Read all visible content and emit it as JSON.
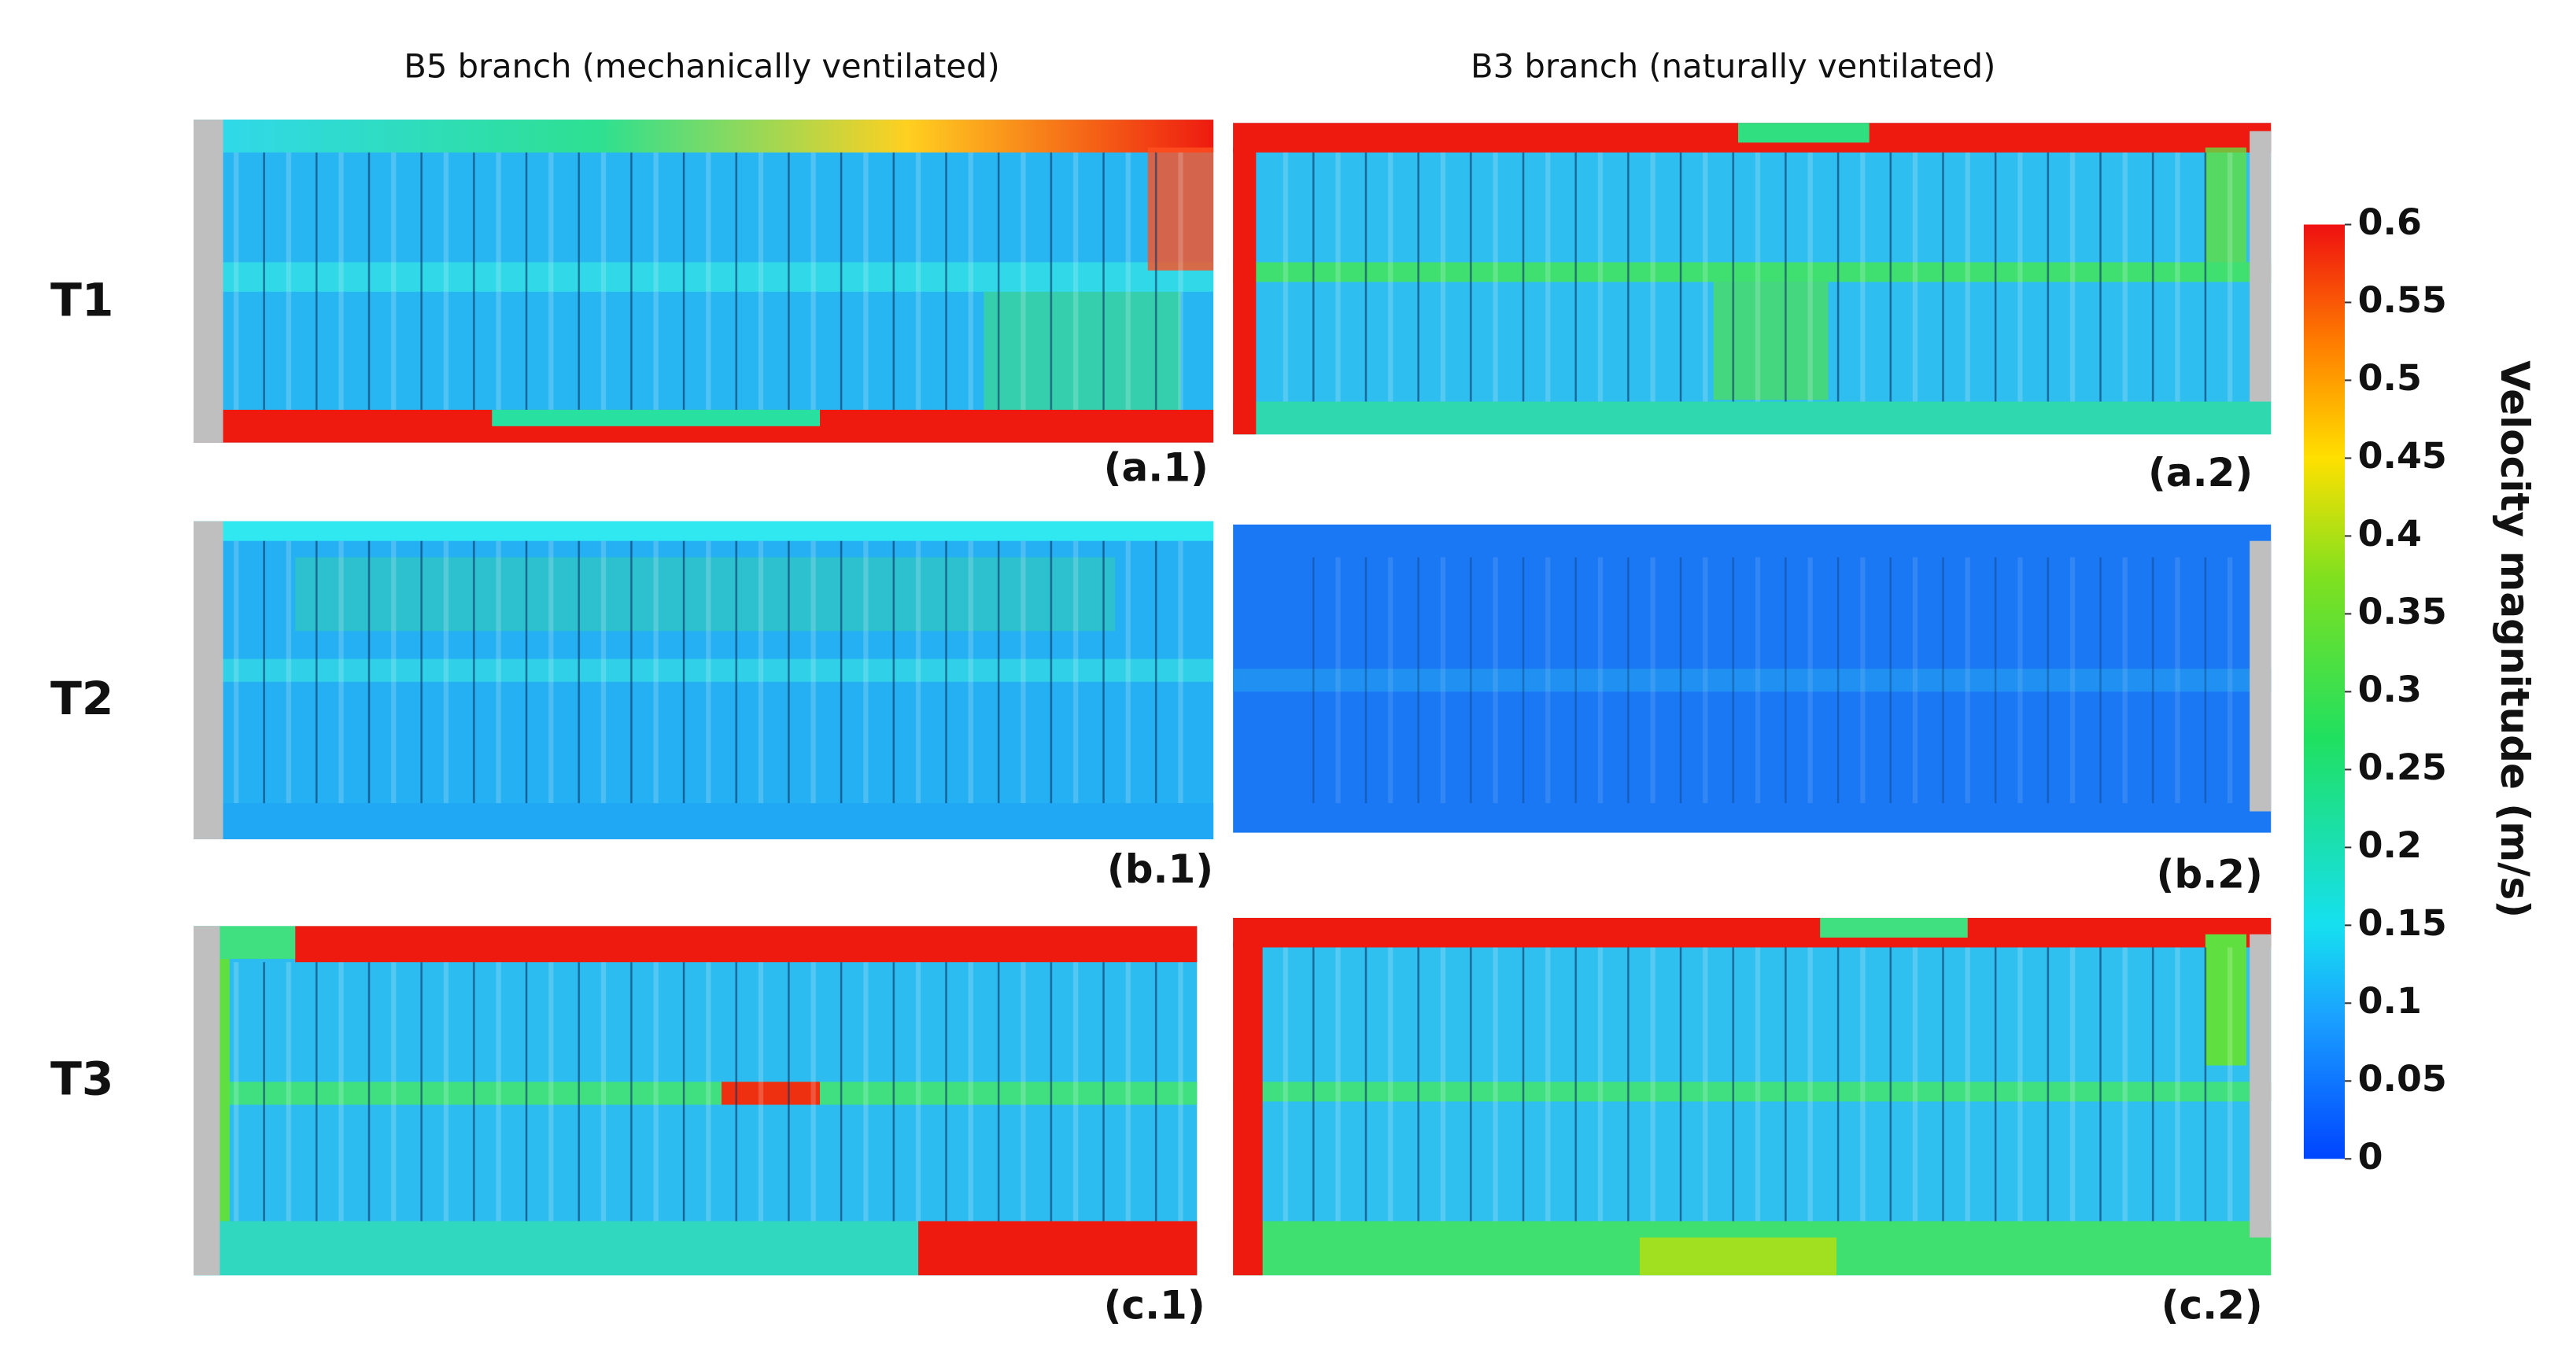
{
  "columns": [
    "B5 branch (mechanically ventilated)",
    "B3 branch (naturally ventilated)"
  ],
  "rows": [
    "T1",
    "T2",
    "T3"
  ],
  "panels": [
    "(a.1)",
    "(a.2)",
    "(b.1)",
    "(b.2)",
    "(c.1)",
    "(c.2)"
  ],
  "colorbar": {
    "label": "Velocity magnitude (m/s)",
    "lim": [
      0,
      0.6
    ],
    "ticks": [
      0,
      0.05,
      0.1,
      0.15,
      0.2,
      0.25,
      0.3,
      0.35,
      0.4,
      0.45,
      0.5,
      0.55,
      0.6
    ]
  }
}
